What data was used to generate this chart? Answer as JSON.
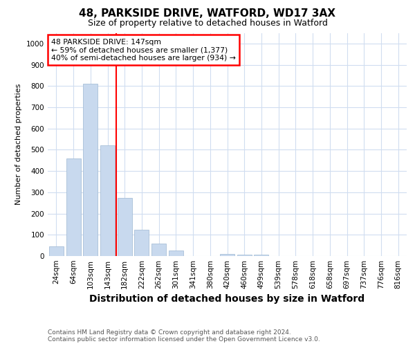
{
  "title1": "48, PARKSIDE DRIVE, WATFORD, WD17 3AX",
  "title2": "Size of property relative to detached houses in Watford",
  "xlabel": "Distribution of detached houses by size in Watford",
  "ylabel": "Number of detached properties",
  "categories": [
    "24sqm",
    "64sqm",
    "103sqm",
    "143sqm",
    "182sqm",
    "222sqm",
    "262sqm",
    "301sqm",
    "341sqm",
    "380sqm",
    "420sqm",
    "460sqm",
    "499sqm",
    "539sqm",
    "578sqm",
    "618sqm",
    "658sqm",
    "697sqm",
    "737sqm",
    "776sqm",
    "816sqm"
  ],
  "values": [
    45,
    460,
    810,
    520,
    275,
    125,
    60,
    25,
    0,
    0,
    10,
    7,
    7,
    0,
    0,
    0,
    0,
    0,
    0,
    0,
    0
  ],
  "bar_color": "#c8d9ee",
  "bar_edge_color": "#a8bfd8",
  "red_line_x": 3.5,
  "annotation_line1": "48 PARKSIDE DRIVE: 147sqm",
  "annotation_line2": "← 59% of detached houses are smaller (1,377)",
  "annotation_line3": "40% of semi-detached houses are larger (934) →",
  "annotation_box_facecolor": "white",
  "annotation_border_color": "red",
  "ylim": [
    0,
    1050
  ],
  "yticks": [
    0,
    100,
    200,
    300,
    400,
    500,
    600,
    700,
    800,
    900,
    1000
  ],
  "footer": "Contains HM Land Registry data © Crown copyright and database right 2024.\nContains public sector information licensed under the Open Government Licence v3.0.",
  "bg_color": "#ffffff",
  "plot_bg_color": "#ffffff",
  "grid_color": "#d0ddf0",
  "title1_fontsize": 11,
  "title2_fontsize": 9,
  "ylabel_fontsize": 8,
  "xlabel_fontsize": 10,
  "tick_fontsize": 7.5,
  "footer_fontsize": 6.5,
  "footer_color": "#555555"
}
